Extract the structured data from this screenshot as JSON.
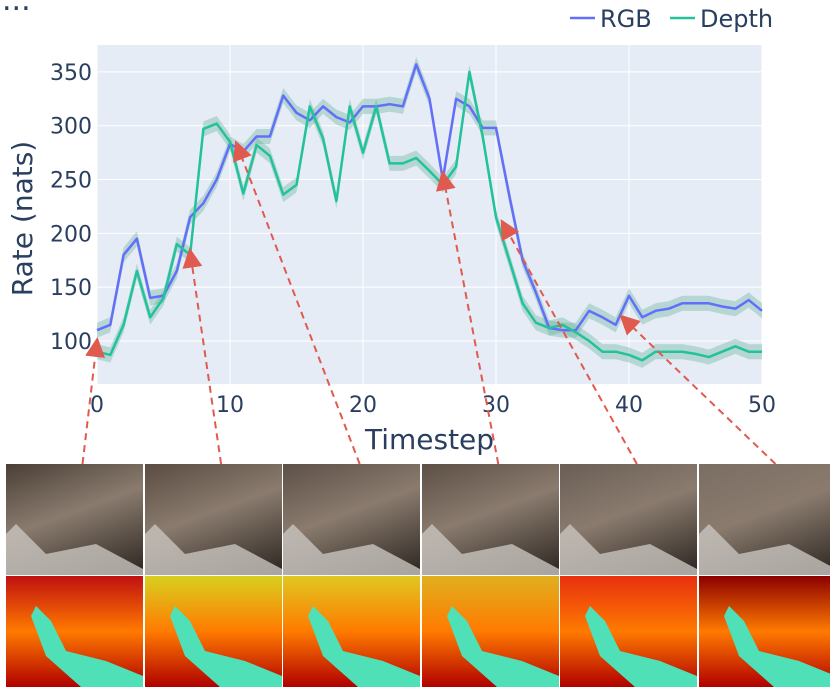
{
  "title_fragment": "...",
  "chart_data": {
    "type": "line",
    "title": "",
    "xlabel": "Timestep",
    "ylabel": "Rate (nats)",
    "xlim": [
      0,
      50
    ],
    "ylim": [
      60,
      375
    ],
    "xticks": [
      0,
      10,
      20,
      30,
      40,
      50
    ],
    "yticks": [
      100,
      150,
      200,
      250,
      300,
      350
    ],
    "grid": true,
    "legend_position": "top-right",
    "background": "#e5ecf6",
    "x": [
      0,
      1,
      2,
      3,
      4,
      5,
      6,
      7,
      8,
      9,
      10,
      11,
      12,
      13,
      14,
      15,
      16,
      17,
      18,
      19,
      20,
      21,
      22,
      23,
      24,
      25,
      26,
      27,
      28,
      29,
      30,
      31,
      32,
      33,
      34,
      35,
      36,
      37,
      38,
      39,
      40,
      41,
      42,
      43,
      44,
      45,
      46,
      47,
      48,
      49,
      50
    ],
    "series": [
      {
        "name": "RGB",
        "color": "#636efa",
        "band": 7,
        "values": [
          110,
          115,
          180,
          195,
          140,
          142,
          165,
          215,
          228,
          250,
          283,
          276,
          290,
          290,
          328,
          312,
          305,
          318,
          308,
          303,
          318,
          318,
          320,
          318,
          357,
          325,
          250,
          325,
          318,
          298,
          298,
          235,
          175,
          145,
          112,
          110,
          110,
          128,
          122,
          115,
          142,
          122,
          128,
          130,
          135,
          135,
          135,
          132,
          130,
          138,
          128
        ]
      },
      {
        "name": "Depth",
        "color": "#22c29a",
        "band": 7,
        "values": [
          90,
          87,
          115,
          165,
          122,
          140,
          190,
          180,
          297,
          302,
          285,
          237,
          282,
          272,
          236,
          245,
          318,
          288,
          230,
          318,
          275,
          318,
          265,
          265,
          270,
          258,
          245,
          262,
          350,
          290,
          215,
          175,
          135,
          117,
          112,
          115,
          108,
          100,
          90,
          90,
          87,
          82,
          90,
          90,
          90,
          88,
          85,
          90,
          95,
          90,
          90
        ]
      }
    ],
    "annotation_arrows": [
      {
        "from_frame": 1,
        "to_x": 0,
        "to_y": 100
      },
      {
        "from_frame": 2,
        "to_x": 7,
        "to_y": 183
      },
      {
        "from_frame": 3,
        "to_x": 10.5,
        "to_y": 283
      },
      {
        "from_frame": 4,
        "to_x": 26,
        "to_y": 255
      },
      {
        "from_frame": 5,
        "to_x": 30.5,
        "to_y": 210
      },
      {
        "from_frame": 6,
        "to_x": 39.5,
        "to_y": 122
      }
    ]
  },
  "frames": [
    {
      "rgb": "#4a3f36",
      "depth": "#c01010"
    },
    {
      "rgb": "#5a4c42",
      "depth": "#d8d020"
    },
    {
      "rgb": "#5d5047",
      "depth": "#e0c820"
    },
    {
      "rgb": "#5c4f45",
      "depth": "#e0b020"
    },
    {
      "rgb": "#6a5e55",
      "depth": "#e83010"
    },
    {
      "rgb": "#7a6d62",
      "depth": "#8b0000"
    }
  ]
}
